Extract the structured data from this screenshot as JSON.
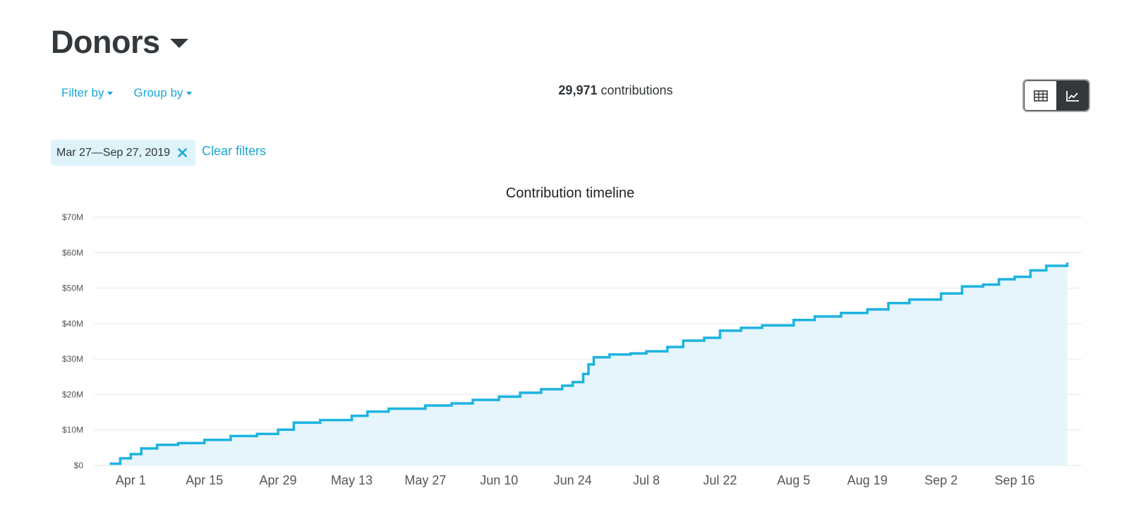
{
  "page": {
    "title": "Donors"
  },
  "toolbar": {
    "filter_label": "Filter by",
    "group_label": "Group by"
  },
  "summary": {
    "count": "29,971",
    "unit": "contributions"
  },
  "view_toggle": {
    "table_icon": "table-grid-icon",
    "chart_icon": "line-chart-icon",
    "active": "chart"
  },
  "filters": {
    "chip_label": "Mar 27—Sep 27, 2019",
    "chip_close_icon": "close-x-icon",
    "clear_label": "Clear filters"
  },
  "colors": {
    "accent": "#1aa7d6",
    "line": "#1cb3e0",
    "area": "#e5f5fb",
    "dark": "#33383c",
    "chip_bg": "#dff3fb"
  },
  "chart_data": {
    "type": "area",
    "title": "Contribution timeline",
    "xlabel": "",
    "ylabel": "",
    "ylim": [
      0,
      70000000
    ],
    "yticks": [
      "$0",
      "$10M",
      "$20M",
      "$30M",
      "$40M",
      "$50M",
      "$60M",
      "$70M"
    ],
    "xticks": [
      "Apr 1",
      "Apr 15",
      "Apr 29",
      "May 13",
      "May 27",
      "Jun 10",
      "Jun 24",
      "Jul 8",
      "Jul 22",
      "Aug 5",
      "Aug 19",
      "Sep 2",
      "Sep 16"
    ],
    "x_range": [
      "2019-03-27",
      "2019-09-27"
    ],
    "grid": true,
    "legend": "none",
    "series": [
      {
        "x": [
          "2019-03-28",
          "2019-03-30",
          "2019-04-01",
          "2019-04-03",
          "2019-04-06",
          "2019-04-10",
          "2019-04-15",
          "2019-04-20",
          "2019-04-25",
          "2019-04-29",
          "2019-05-02",
          "2019-05-07",
          "2019-05-13",
          "2019-05-16",
          "2019-05-20",
          "2019-05-27",
          "2019-06-01",
          "2019-06-05",
          "2019-06-10",
          "2019-06-14",
          "2019-06-18",
          "2019-06-22",
          "2019-06-24",
          "2019-06-26",
          "2019-06-27",
          "2019-06-28",
          "2019-07-01",
          "2019-07-05",
          "2019-07-08",
          "2019-07-12",
          "2019-07-15",
          "2019-07-19",
          "2019-07-22",
          "2019-07-26",
          "2019-07-30",
          "2019-08-05",
          "2019-08-09",
          "2019-08-14",
          "2019-08-19",
          "2019-08-23",
          "2019-08-27",
          "2019-09-02",
          "2019-09-06",
          "2019-09-10",
          "2019-09-13",
          "2019-09-16",
          "2019-09-19",
          "2019-09-22",
          "2019-09-26"
        ],
        "values": [
          500000,
          2000000,
          3200000,
          4800000,
          5800000,
          6300000,
          7200000,
          8300000,
          8900000,
          10100000,
          12100000,
          12800000,
          14000000,
          15200000,
          16000000,
          16900000,
          17500000,
          18500000,
          19400000,
          20500000,
          21500000,
          22500000,
          23500000,
          25800000,
          28500000,
          30500000,
          31300000,
          31600000,
          32200000,
          33400000,
          35200000,
          36000000,
          38000000,
          38800000,
          39500000,
          41000000,
          42000000,
          43000000,
          44000000,
          45800000,
          46800000,
          48500000,
          50500000,
          51000000,
          52500000,
          53200000,
          55000000,
          56300000,
          57200000
        ]
      }
    ]
  }
}
